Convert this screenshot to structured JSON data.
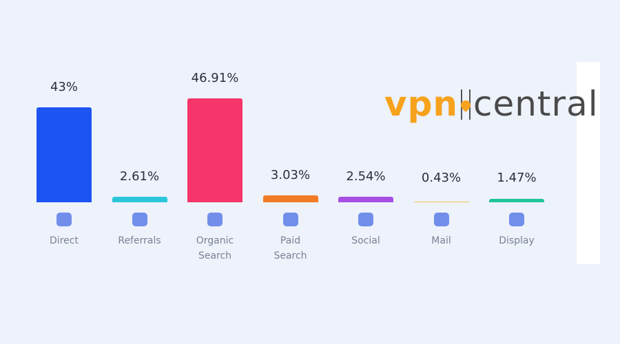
{
  "chart_data": {
    "type": "bar",
    "categories": [
      "Direct",
      "Referrals",
      "Organic Search",
      "Paid Search",
      "Social",
      "Mail",
      "Display"
    ],
    "values": [
      43,
      2.61,
      46.91,
      3.03,
      2.54,
      0.43,
      1.47
    ],
    "value_labels": [
      "43%",
      "2.61%",
      "46.91%",
      "3.03%",
      "2.54%",
      "0.43%",
      "1.47%"
    ],
    "colors": [
      "#1c55f4",
      "#2cc6da",
      "#f6356b",
      "#f27b25",
      "#a64fe2",
      "#f4c650",
      "#22c49b"
    ]
  },
  "logo": {
    "left": "vpn",
    "right": "central"
  }
}
